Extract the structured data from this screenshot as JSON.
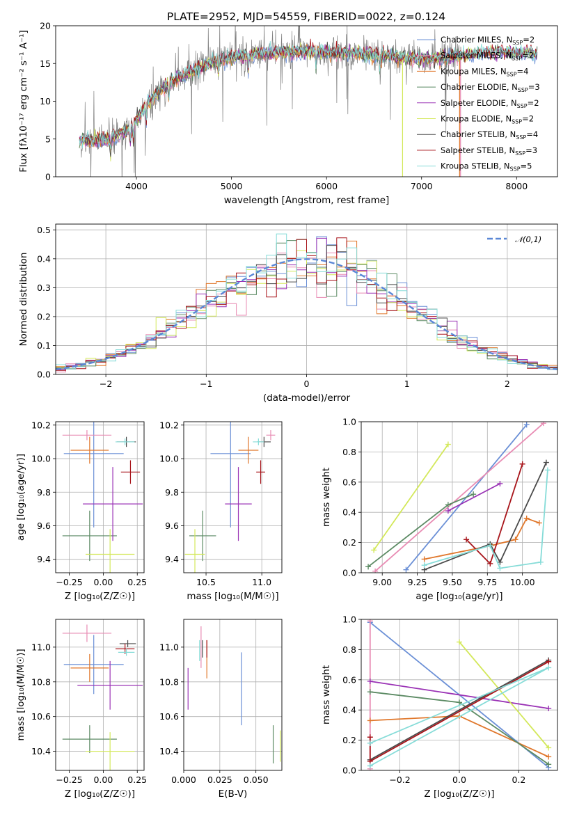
{
  "title": "PLATE=2952, MJD=54559, FIBERID=0022, z=0.124",
  "colors": {
    "Chabrier MILES": "#6a8fd6",
    "Salpeter MILES": "#e88bb3",
    "Kroupa MILES": "#e0772b",
    "Chabrier ELODIE": "#5b8a63",
    "Salpeter ELODIE": "#9a32b5",
    "Kroupa ELODIE": "#d3e85a",
    "Chabrier STELIB": "#4a4a4a",
    "Salpeter STELIB": "#a8151b",
    "Kroupa STELIB": "#86dcd8"
  },
  "chart_data": [
    {
      "id": "spectrum",
      "type": "line",
      "xlabel": "wavelength [Angstrom, rest frame]",
      "ylabel": "Flux [fλ10⁻¹⁷ erg cm⁻² s⁻¹ A⁻¹]",
      "xlim": [
        3150,
        8430
      ],
      "ylim": [
        0,
        20
      ],
      "xticks": [
        4000,
        5000,
        6000,
        7000,
        8000
      ],
      "yticks": [
        0,
        5,
        10,
        15,
        20
      ],
      "grid": false,
      "legend_position": "top-right",
      "data_color": "#808080",
      "continuum_model": {
        "x": [
          3400,
          3700,
          3950,
          4100,
          4350,
          4600,
          4800,
          5000,
          5300,
          5600,
          6000,
          6400,
          6800,
          7000,
          7200,
          7400,
          7800,
          8200
        ],
        "y": [
          4.8,
          4.9,
          6.5,
          9.5,
          12.5,
          14.0,
          15.2,
          15.8,
          16.3,
          16.5,
          16.5,
          16.2,
          15.8,
          15.5,
          15.7,
          16.0,
          16.6,
          16.3
        ]
      },
      "legend": [
        {
          "name": "Chabrier MILES",
          "nssp": "2"
        },
        {
          "name": "Salpeter MILES",
          "nssp": "2"
        },
        {
          "name": "Kroupa MILES",
          "nssp": "4"
        },
        {
          "name": "Chabrier ELODIE",
          "nssp": "3"
        },
        {
          "name": "Salpeter ELODIE",
          "nssp": "2"
        },
        {
          "name": "Kroupa ELODIE",
          "nssp": "2"
        },
        {
          "name": "Chabrier STELIB",
          "nssp": "4"
        },
        {
          "name": "Salpeter STELIB",
          "nssp": "3"
        },
        {
          "name": "Kroupa STELIB",
          "nssp": "5"
        }
      ]
    },
    {
      "id": "residual-hist",
      "type": "bar",
      "xlabel": "(data-model)/error",
      "ylabel": "Normed distribution",
      "xlim": [
        -2.5,
        2.5
      ],
      "ylim": [
        0,
        0.52
      ],
      "xticks": [
        -2,
        -1,
        0,
        1,
        2
      ],
      "yticks": [
        0.0,
        0.1,
        0.2,
        0.3,
        0.4,
        0.5
      ],
      "grid": true,
      "bin_width": 0.1,
      "legend_label": "𝒩(0,1)",
      "legend_position": "top-right",
      "normal_color": "#5a87d6"
    },
    {
      "id": "age-vs-Z",
      "type": "scatter",
      "xlabel": "Z [log₁₀(Z/Z☉)]",
      "ylabel": "age  [log₁₀(age/yr)]",
      "xlim": [
        -0.35,
        0.3
      ],
      "ylim": [
        9.32,
        10.22
      ],
      "xticks": [
        -0.25,
        0.0,
        0.25
      ],
      "xticklabels": [
        "−0.25",
        "0.00",
        "0.25"
      ],
      "yticks": [
        9.4,
        9.6,
        9.8,
        10.0,
        10.2
      ],
      "grid": true,
      "points": [
        {
          "model": "Chabrier MILES",
          "x": -0.07,
          "xerr": 0.22,
          "y": 10.03,
          "yerr": 0.44
        },
        {
          "model": "Salpeter MILES",
          "x": -0.12,
          "xerr": 0.18,
          "y": 10.14,
          "yerr": 0.03
        },
        {
          "model": "Kroupa MILES",
          "x": -0.1,
          "xerr": 0.14,
          "y": 10.05,
          "yerr": 0.08
        },
        {
          "model": "Chabrier ELODIE",
          "x": -0.1,
          "xerr": 0.2,
          "y": 9.54,
          "yerr": 0.15
        },
        {
          "model": "Salpeter ELODIE",
          "x": 0.07,
          "xerr": 0.22,
          "y": 9.73,
          "yerr": 0.22
        },
        {
          "model": "Kroupa ELODIE",
          "x": 0.05,
          "xerr": 0.18,
          "y": 9.43,
          "yerr": 0.15
        },
        {
          "model": "Chabrier STELIB",
          "x": 0.17,
          "xerr": 0.07,
          "y": 10.1,
          "yerr": 0.03
        },
        {
          "model": "Salpeter STELIB",
          "x": 0.2,
          "xerr": 0.07,
          "y": 9.92,
          "yerr": 0.07
        },
        {
          "model": "Kroupa STELIB",
          "x": 0.16,
          "xerr": 0.07,
          "y": 10.1,
          "yerr": 0.02
        }
      ]
    },
    {
      "id": "age-vs-mass",
      "type": "scatter",
      "xlabel": "mass [log₁₀(M/M☉)]",
      "ylabel": "",
      "xlim": [
        10.3,
        11.18
      ],
      "ylim": [
        9.32,
        10.22
      ],
      "xticks": [
        10.5,
        11.0
      ],
      "xticklabels": [
        "10.5",
        "11.0"
      ],
      "yticks": [
        9.4,
        9.6,
        9.8,
        10.0,
        10.2
      ],
      "grid": true,
      "points": [
        {
          "model": "Chabrier MILES",
          "x": 10.72,
          "xerr": 0.18,
          "y": 10.03,
          "yerr": 0.44
        },
        {
          "model": "Salpeter MILES",
          "x": 11.08,
          "xerr": 0.04,
          "y": 10.14,
          "yerr": 0.03
        },
        {
          "model": "Kroupa MILES",
          "x": 10.88,
          "xerr": 0.09,
          "y": 10.05,
          "yerr": 0.08
        },
        {
          "model": "Chabrier ELODIE",
          "x": 10.47,
          "xerr": 0.12,
          "y": 9.54,
          "yerr": 0.15
        },
        {
          "model": "Salpeter ELODIE",
          "x": 10.79,
          "xerr": 0.12,
          "y": 9.73,
          "yerr": 0.22
        },
        {
          "model": "Kroupa ELODIE",
          "x": 10.4,
          "xerr": 0.09,
          "y": 9.43,
          "yerr": 0.15
        },
        {
          "model": "Chabrier STELIB",
          "x": 11.02,
          "xerr": 0.06,
          "y": 10.1,
          "yerr": 0.03
        },
        {
          "model": "Salpeter STELIB",
          "x": 10.99,
          "xerr": 0.04,
          "y": 9.92,
          "yerr": 0.07
        },
        {
          "model": "Kroupa STELIB",
          "x": 10.97,
          "xerr": 0.05,
          "y": 10.1,
          "yerr": 0.02
        }
      ]
    },
    {
      "id": "weight-vs-age",
      "type": "line",
      "xlabel": "age  [log₁₀(age/yr)]",
      "ylabel": "mass weight",
      "xlim": [
        8.85,
        10.25
      ],
      "ylim": [
        0,
        1
      ],
      "xticks": [
        9.0,
        9.25,
        9.5,
        9.75,
        10.0
      ],
      "xticklabels": [
        "9.00",
        "9.25",
        "9.50",
        "9.75",
        "10.00"
      ],
      "yticks": [
        0.0,
        0.2,
        0.4,
        0.6,
        0.8,
        1.0
      ],
      "grid": true,
      "series": [
        {
          "model": "Chabrier MILES",
          "x": [
            9.17,
            10.03
          ],
          "y": [
            0.02,
            0.98
          ]
        },
        {
          "model": "Salpeter MILES",
          "x": [
            8.95,
            10.15
          ],
          "y": [
            0.01,
            0.99
          ]
        },
        {
          "model": "Kroupa MILES",
          "x": [
            9.3,
            9.78,
            9.95,
            10.03,
            10.12
          ],
          "y": [
            0.09,
            0.18,
            0.22,
            0.36,
            0.33
          ]
        },
        {
          "model": "Chabrier ELODIE",
          "x": [
            8.9,
            9.47,
            9.65
          ],
          "y": [
            0.04,
            0.45,
            0.52
          ]
        },
        {
          "model": "Salpeter ELODIE",
          "x": [
            9.47,
            9.84
          ],
          "y": [
            0.41,
            0.59
          ]
        },
        {
          "model": "Kroupa ELODIE",
          "x": [
            8.94,
            9.47
          ],
          "y": [
            0.15,
            0.85
          ]
        },
        {
          "model": "Chabrier STELIB",
          "x": [
            9.3,
            9.77,
            9.84,
            10.17
          ],
          "y": [
            0.02,
            0.19,
            0.07,
            0.73
          ]
        },
        {
          "model": "Salpeter STELIB",
          "x": [
            9.6,
            9.77,
            10.0
          ],
          "y": [
            0.22,
            0.06,
            0.72
          ]
        },
        {
          "model": "Kroupa STELIB",
          "x": [
            9.3,
            9.77,
            9.84,
            10.13,
            10.18
          ],
          "y": [
            0.05,
            0.18,
            0.03,
            0.07,
            0.68
          ]
        }
      ]
    },
    {
      "id": "mass-vs-Z",
      "type": "scatter",
      "xlabel": "Z [log₁₀(Z/Z☉)]",
      "ylabel": "mass [log₁₀(M/M☉)]",
      "xlim": [
        -0.35,
        0.3
      ],
      "ylim": [
        10.29,
        11.16
      ],
      "xticks": [
        -0.25,
        0.0,
        0.25
      ],
      "xticklabels": [
        "−0.25",
        "0.00",
        "0.25"
      ],
      "yticks": [
        10.4,
        10.6,
        10.8,
        11.0
      ],
      "grid": true,
      "points": [
        {
          "model": "Chabrier MILES",
          "x": -0.07,
          "xerr": 0.22,
          "y": 10.9,
          "yerr": 0.17
        },
        {
          "model": "Salpeter MILES",
          "x": -0.12,
          "xerr": 0.18,
          "y": 11.08,
          "yerr": 0.05
        },
        {
          "model": "Kroupa MILES",
          "x": -0.1,
          "xerr": 0.14,
          "y": 10.88,
          "yerr": 0.08
        },
        {
          "model": "Chabrier ELODIE",
          "x": -0.1,
          "xerr": 0.2,
          "y": 10.47,
          "yerr": 0.08
        },
        {
          "model": "Salpeter ELODIE",
          "x": 0.05,
          "xerr": 0.24,
          "y": 10.78,
          "yerr": 0.14
        },
        {
          "model": "Kroupa ELODIE",
          "x": 0.05,
          "xerr": 0.18,
          "y": 10.4,
          "yerr": 0.11
        },
        {
          "model": "Chabrier STELIB",
          "x": 0.18,
          "xerr": 0.06,
          "y": 11.02,
          "yerr": 0.02
        },
        {
          "model": "Salpeter STELIB",
          "x": 0.16,
          "xerr": 0.07,
          "y": 10.99,
          "yerr": 0.03
        },
        {
          "model": "Kroupa STELIB",
          "x": 0.17,
          "xerr": 0.06,
          "y": 10.97,
          "yerr": 0.02
        }
      ]
    },
    {
      "id": "mass-vs-ebv",
      "type": "scatter",
      "xlabel": "E(B-V)",
      "ylabel": "",
      "xlim": [
        0.0,
        0.068
      ],
      "ylim": [
        10.29,
        11.16
      ],
      "xticks": [
        0.0,
        0.025,
        0.05
      ],
      "xticklabels": [
        "0.000",
        "0.025",
        "0.050"
      ],
      "yticks": [
        10.4,
        10.6,
        10.8,
        11.0
      ],
      "grid": true,
      "points": [
        {
          "model": "Chabrier MILES",
          "x": 0.04,
          "xerr": 0,
          "y": 10.76,
          "yerr": 0.21
        },
        {
          "model": "Salpeter MILES",
          "x": 0.012,
          "xerr": 0,
          "y": 11.0,
          "yerr": 0.12
        },
        {
          "model": "Kroupa MILES",
          "x": 0.016,
          "xerr": 0,
          "y": 10.93,
          "yerr": 0.11
        },
        {
          "model": "Chabrier ELODIE",
          "x": 0.062,
          "xerr": 0,
          "y": 10.44,
          "yerr": 0.11
        },
        {
          "model": "Salpeter ELODIE",
          "x": 0.003,
          "xerr": 0,
          "y": 10.76,
          "yerr": 0.12
        },
        {
          "model": "Kroupa ELODIE",
          "x": 0.067,
          "xerr": 0,
          "y": 10.43,
          "yerr": 0.09
        },
        {
          "model": "Chabrier STELIB",
          "x": 0.013,
          "xerr": 0,
          "y": 10.99,
          "yerr": 0.05
        },
        {
          "model": "Salpeter STELIB",
          "x": 0.016,
          "xerr": 0,
          "y": 10.99,
          "yerr": 0.05
        },
        {
          "model": "Kroupa STELIB",
          "x": 0.011,
          "xerr": 0,
          "y": 10.98,
          "yerr": 0.06
        }
      ]
    },
    {
      "id": "weight-vs-Z",
      "type": "line",
      "xlabel": "Z [log₁₀(Z/Z☉)]",
      "ylabel": "mass weight",
      "xlim": [
        -0.33,
        0.33
      ],
      "ylim": [
        0,
        1
      ],
      "xticks": [
        -0.2,
        0.0,
        0.2
      ],
      "xticklabels": [
        "−0.2",
        "0.0",
        "0.2"
      ],
      "yticks": [
        0.0,
        0.2,
        0.4,
        0.6,
        0.8,
        1.0
      ],
      "grid": true,
      "series": [
        {
          "model": "Chabrier MILES",
          "x": [
            -0.3,
            0.3
          ],
          "y": [
            0.98,
            0.02
          ]
        },
        {
          "model": "Salpeter MILES",
          "x": [
            -0.3,
            -0.3
          ],
          "y": [
            0.01,
            0.99
          ]
        },
        {
          "model": "Kroupa MILES",
          "x": [
            -0.3,
            0.0,
            0.3
          ],
          "y": [
            0.33,
            0.36,
            0.09
          ]
        },
        {
          "model": "Chabrier ELODIE",
          "x": [
            -0.3,
            0.0,
            0.3
          ],
          "y": [
            0.52,
            0.45,
            0.04
          ]
        },
        {
          "model": "Salpeter ELODIE",
          "x": [
            -0.3,
            0.3
          ],
          "y": [
            0.59,
            0.41
          ]
        },
        {
          "model": "Kroupa ELODIE",
          "x": [
            0.0,
            0.3
          ],
          "y": [
            0.85,
            0.15
          ]
        },
        {
          "model": "Chabrier STELIB",
          "x": [
            -0.3,
            0.3
          ],
          "y": [
            0.07,
            0.73
          ]
        },
        {
          "model": "Salpeter STELIB",
          "x": [
            -0.3,
            -0.3,
            0.3
          ],
          "y": [
            0.22,
            0.06,
            0.72
          ]
        },
        {
          "model": "Kroupa STELIB",
          "x": [
            -0.3,
            0.3,
            -0.3
          ],
          "y": [
            0.18,
            0.68,
            0.03
          ]
        }
      ]
    }
  ]
}
